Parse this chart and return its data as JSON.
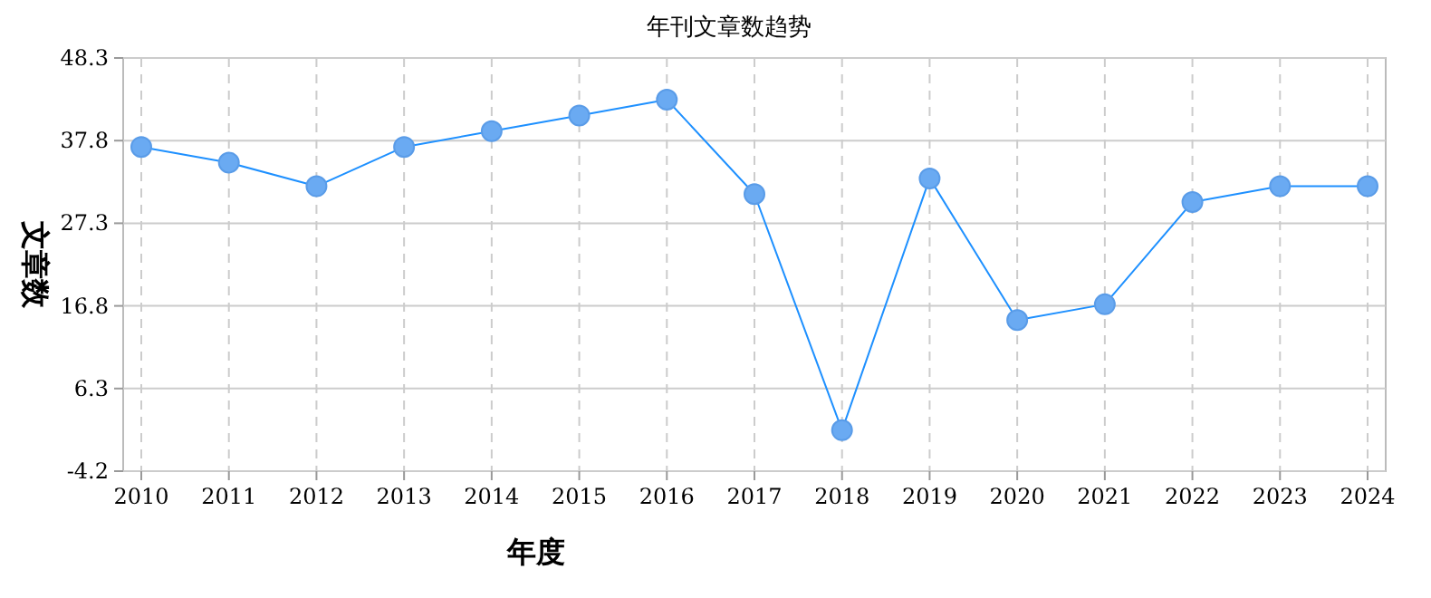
{
  "chart_data": {
    "type": "line",
    "title": "年刊文章数趋势",
    "xlabel": "年度",
    "ylabel": "文章数",
    "categories": [
      "2010",
      "2011",
      "2012",
      "2013",
      "2014",
      "2015",
      "2016",
      "2017",
      "2018",
      "2019",
      "2020",
      "2021",
      "2022",
      "2023",
      "2024"
    ],
    "series": [
      {
        "color": "#1e90ff",
        "values": [
          37,
          35,
          32,
          37,
          39,
          41,
          43,
          31,
          1,
          33,
          15,
          17,
          30,
          32,
          32
        ]
      }
    ],
    "ylim": [
      -4.2,
      48.3
    ],
    "yticks": [
      -4.2,
      6.3,
      16.8,
      27.3,
      37.8,
      48.3
    ],
    "grid": true,
    "marker": "circle",
    "line_style": "solid"
  }
}
